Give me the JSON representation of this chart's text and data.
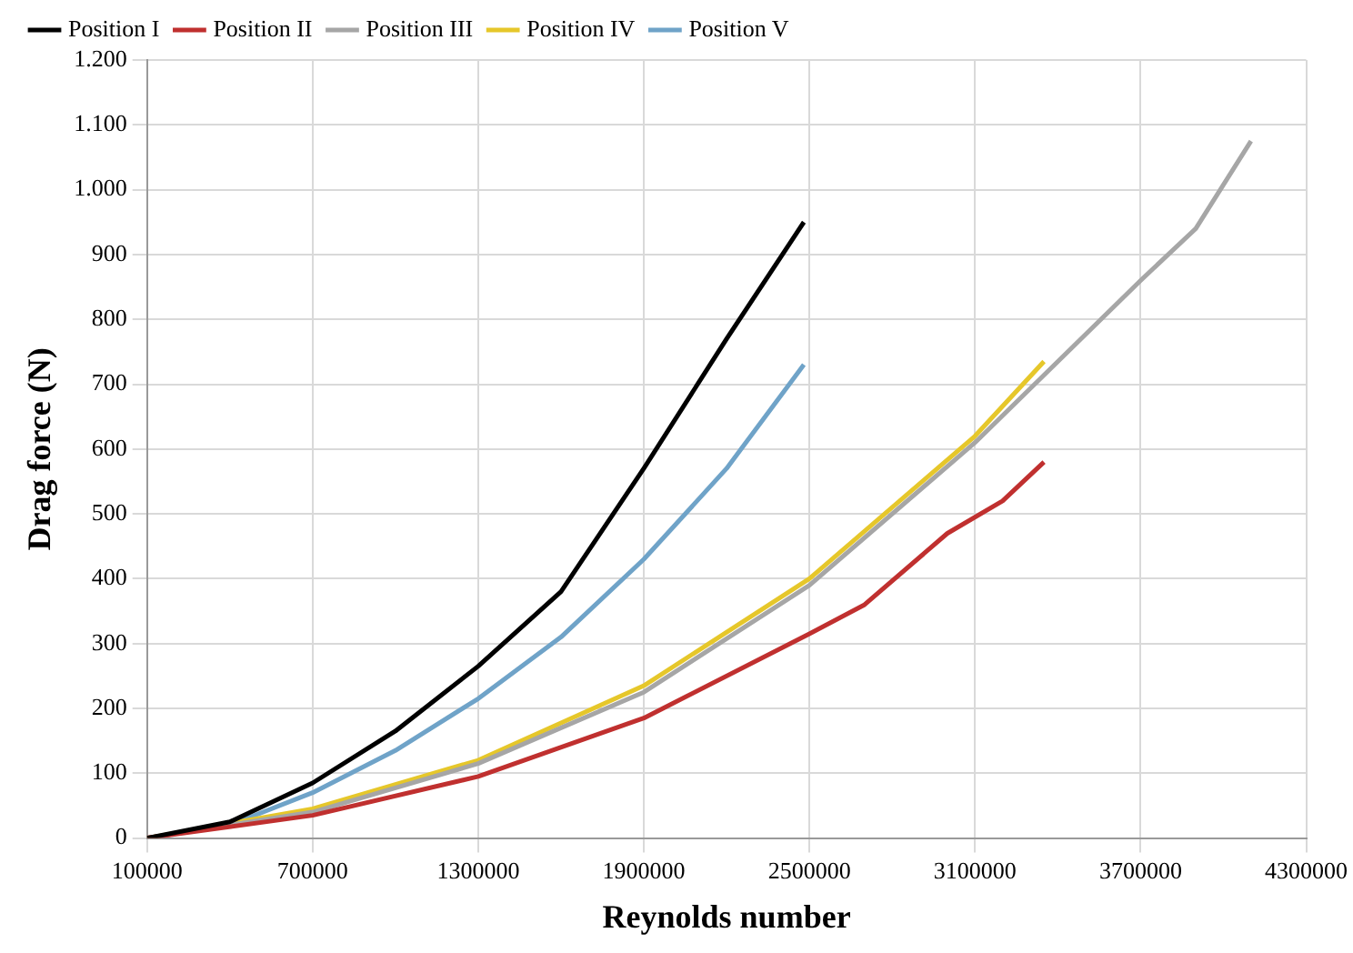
{
  "chart_data": {
    "type": "line",
    "xlabel": "Reynolds number",
    "ylabel": "Drag force (N)",
    "xlim": [
      100000,
      4300000
    ],
    "xticks": [
      100000,
      700000,
      1300000,
      1900000,
      2500000,
      3100000,
      3700000,
      4300000
    ],
    "ylim": [
      0,
      1200
    ],
    "yticks": [
      0,
      100,
      200,
      300,
      400,
      500,
      600,
      700,
      800,
      900,
      {
        "value": 1000,
        "label": "1.000"
      },
      {
        "value": 1100,
        "label": "1.100"
      },
      {
        "value": 1200,
        "label": "1.200"
      }
    ],
    "grid": true,
    "legend": "top",
    "marker": "none",
    "line_style": "solid",
    "series": [
      {
        "name": "Position I",
        "color": "#000000",
        "x": [
          100000,
          400000,
          700000,
          1000000,
          1300000,
          1600000,
          1900000,
          2200000,
          2480000
        ],
        "values": [
          0,
          25,
          85,
          165,
          265,
          380,
          570,
          770,
          950
        ]
      },
      {
        "name": "Position II",
        "color": "#c0302f",
        "x": [
          100000,
          700000,
          1300000,
          1900000,
          2500000,
          2700000,
          3000000,
          3200000,
          3350000
        ],
        "values": [
          0,
          35,
          95,
          185,
          315,
          360,
          470,
          520,
          580
        ]
      },
      {
        "name": "Position III",
        "color": "#a6a6a6",
        "x": [
          100000,
          700000,
          1300000,
          1900000,
          2500000,
          3100000,
          3700000,
          3900000,
          4100000
        ],
        "values": [
          0,
          40,
          115,
          225,
          390,
          610,
          860,
          940,
          1075
        ]
      },
      {
        "name": "Position IV",
        "color": "#e6c72a",
        "x": [
          100000,
          700000,
          1300000,
          1900000,
          2500000,
          3100000,
          3350000
        ],
        "values": [
          0,
          45,
          120,
          235,
          400,
          620,
          735
        ]
      },
      {
        "name": "Position V",
        "color": "#6fa3c8",
        "x": [
          100000,
          400000,
          700000,
          1000000,
          1300000,
          1600000,
          1900000,
          2200000,
          2480000
        ],
        "values": [
          0,
          20,
          70,
          135,
          215,
          310,
          430,
          570,
          730
        ]
      }
    ]
  }
}
